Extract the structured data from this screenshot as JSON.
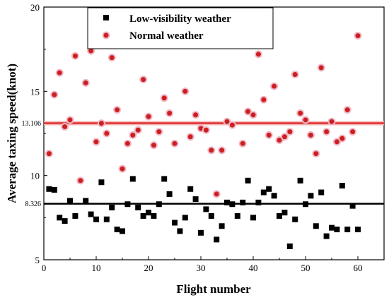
{
  "chart_data": {
    "type": "scatter",
    "xlabel": "Flight number",
    "ylabel": "Average taxing speed(knot)",
    "xlim": [
      0,
      65
    ],
    "ylim": [
      5,
      20
    ],
    "xticks": [
      0,
      10,
      20,
      30,
      40,
      50,
      60
    ],
    "yticks": [
      5,
      10,
      15,
      20
    ],
    "grid": false,
    "legend": "top-center",
    "reference_lines": [
      {
        "value": 13.106,
        "label": "13.106",
        "color": "#e03030"
      },
      {
        "value": 8.326,
        "label": "8.326",
        "color": "#000000"
      }
    ],
    "series": [
      {
        "name": "Low-visibility weather",
        "marker": "square",
        "color": "#000000",
        "x": [
          1,
          2,
          3,
          4,
          5,
          6,
          7,
          8,
          9,
          10,
          11,
          12,
          13,
          14,
          15,
          16,
          17,
          18,
          19,
          20,
          21,
          22,
          23,
          24,
          25,
          26,
          27,
          28,
          29,
          30,
          31,
          32,
          33,
          34,
          35,
          36,
          37,
          38,
          39,
          40,
          41,
          42,
          43,
          44,
          45,
          46,
          47,
          48,
          49,
          50,
          51,
          52,
          53,
          54,
          55,
          56,
          57,
          58,
          59,
          60
        ],
        "y": [
          9.2,
          9.15,
          7.5,
          7.3,
          8.5,
          7.6,
          9.7,
          8.5,
          7.7,
          7.4,
          9.6,
          7.4,
          8.1,
          6.8,
          6.7,
          8.3,
          9.8,
          8.1,
          7.6,
          7.8,
          7.6,
          8.3,
          9.8,
          8.9,
          7.2,
          6.7,
          7.5,
          9.2,
          8.6,
          6.6,
          8.0,
          7.6,
          6.2,
          7.0,
          8.4,
          8.3,
          7.6,
          8.4,
          9.7,
          7.5,
          8.4,
          9.0,
          9.2,
          8.8,
          7.6,
          7.8,
          5.8,
          7.4,
          9.7,
          8.3,
          8.8,
          7.0,
          9.0,
          6.4,
          6.9,
          6.8,
          9.4,
          6.8,
          8.2,
          6.8
        ]
      },
      {
        "name": "Normal weather",
        "marker": "circle",
        "color": "#cc2020",
        "x": [
          1,
          2,
          3,
          4,
          5,
          6,
          7,
          8,
          9,
          10,
          11,
          12,
          13,
          14,
          15,
          16,
          17,
          18,
          19,
          20,
          21,
          22,
          23,
          24,
          25,
          26,
          27,
          28,
          29,
          30,
          31,
          32,
          33,
          34,
          35,
          36,
          37,
          38,
          39,
          40,
          41,
          42,
          43,
          44,
          45,
          46,
          47,
          48,
          49,
          50,
          51,
          52,
          53,
          54,
          55,
          56,
          57,
          58,
          59,
          60
        ],
        "y": [
          11.3,
          14.8,
          16.1,
          12.9,
          13.3,
          17.1,
          9.7,
          15.5,
          17.4,
          12.0,
          13.1,
          12.5,
          17.0,
          13.9,
          10.4,
          11.9,
          12.4,
          12.7,
          15.7,
          13.5,
          11.8,
          12.6,
          14.6,
          13.7,
          11.9,
          18.3,
          15.0,
          12.3,
          13.6,
          12.8,
          12.7,
          11.5,
          8.9,
          11.5,
          13.2,
          13.0,
          18.0,
          11.9,
          13.8,
          13.6,
          17.2,
          14.5,
          12.4,
          15.3,
          12.1,
          12.3,
          12.6,
          16.0,
          13.7,
          13.3,
          12.4,
          11.3,
          16.4,
          12.6,
          13.2,
          12.0,
          12.2,
          13.9,
          12.6,
          18.3
        ]
      }
    ]
  }
}
